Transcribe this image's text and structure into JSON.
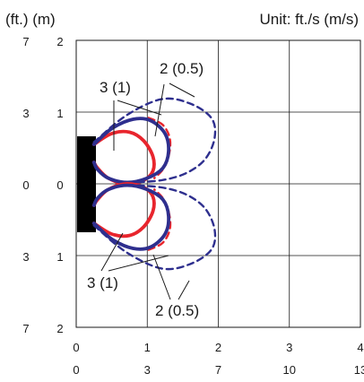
{
  "header": {
    "unit_left": "(ft.) (m)",
    "unit_right": "Unit: ft./s (m/s)"
  },
  "chart_data": {
    "type": "line",
    "title": "",
    "xlabel": "",
    "ylabel": "",
    "xlim": [
      0,
      4
    ],
    "ylim": [
      -2,
      2
    ],
    "grid": true,
    "x_ticks_m": [
      "0",
      "1",
      "2",
      "3",
      "4"
    ],
    "x_ticks_ft": [
      "0",
      "3",
      "7",
      "10",
      "13"
    ],
    "y_ticks_m": [
      "2",
      "1",
      "0",
      "1",
      "2"
    ],
    "y_ticks_ft": [
      "7",
      "3",
      "0",
      "3",
      "7"
    ],
    "colors": {
      "red": "#e8252d",
      "blue": "#2e2f8e",
      "unit_block": "#000000"
    },
    "annotations": [
      {
        "label": "2 (0.5)",
        "position": "upper"
      },
      {
        "label": "3 (1)",
        "position": "upper"
      },
      {
        "label": "3 (1)",
        "position": "lower"
      },
      {
        "label": "2 (0.5)",
        "position": "lower"
      }
    ],
    "series": [
      {
        "color": "red",
        "style": "solid",
        "velocity": "3 (1)",
        "points": [
          [
            0.25,
            0.55
          ],
          [
            0.5,
            0.7
          ],
          [
            0.75,
            0.72
          ],
          [
            0.95,
            0.6
          ],
          [
            1.08,
            0.38
          ],
          [
            1.08,
            0.18
          ],
          [
            0.95,
            0.05
          ],
          [
            0.7,
            0.0
          ],
          [
            0.45,
            0.08
          ],
          [
            0.3,
            0.22
          ],
          [
            0.25,
            0.3
          ]
        ]
      },
      {
        "color": "red",
        "style": "dashed",
        "velocity": "3 (1)",
        "points": [
          [
            1.02,
            0.92
          ],
          [
            1.22,
            0.82
          ],
          [
            1.32,
            0.62
          ],
          [
            1.3,
            0.38
          ],
          [
            1.22,
            0.2
          ],
          [
            1.1,
            0.08
          ]
        ]
      },
      {
        "color": "blue",
        "style": "solid",
        "velocity": "2 (0.5)",
        "points": [
          [
            0.25,
            0.55
          ],
          [
            0.5,
            0.77
          ],
          [
            0.8,
            0.9
          ],
          [
            1.05,
            0.88
          ],
          [
            1.25,
            0.7
          ],
          [
            1.3,
            0.45
          ],
          [
            1.22,
            0.22
          ],
          [
            1.0,
            0.08
          ],
          [
            0.72,
            0.02
          ],
          [
            0.45,
            0.08
          ],
          [
            0.3,
            0.2
          ],
          [
            0.25,
            0.3
          ]
        ]
      },
      {
        "color": "blue",
        "style": "dashed",
        "velocity": "2 (0.5)",
        "points": [
          [
            0.25,
            0.58
          ],
          [
            0.7,
            0.95
          ],
          [
            1.2,
            1.18
          ],
          [
            1.6,
            1.12
          ],
          [
            1.9,
            0.92
          ],
          [
            1.95,
            0.65
          ],
          [
            1.82,
            0.35
          ],
          [
            1.55,
            0.15
          ],
          [
            1.2,
            0.05
          ],
          [
            0.8,
            0.02
          ]
        ]
      },
      {
        "color": "red",
        "style": "solid",
        "velocity": "3 (1)",
        "points": [
          [
            0.25,
            -0.55
          ],
          [
            0.5,
            -0.7
          ],
          [
            0.75,
            -0.72
          ],
          [
            0.95,
            -0.6
          ],
          [
            1.08,
            -0.38
          ],
          [
            1.08,
            -0.18
          ],
          [
            0.95,
            -0.05
          ],
          [
            0.7,
            0.0
          ],
          [
            0.45,
            -0.08
          ],
          [
            0.3,
            -0.22
          ],
          [
            0.25,
            -0.3
          ]
        ]
      },
      {
        "color": "red",
        "style": "dashed",
        "velocity": "3 (1)",
        "points": [
          [
            1.02,
            -0.92
          ],
          [
            1.22,
            -0.82
          ],
          [
            1.32,
            -0.62
          ],
          [
            1.3,
            -0.38
          ],
          [
            1.22,
            -0.2
          ],
          [
            1.1,
            -0.08
          ]
        ]
      },
      {
        "color": "blue",
        "style": "solid",
        "velocity": "2 (0.5)",
        "points": [
          [
            0.25,
            -0.55
          ],
          [
            0.5,
            -0.77
          ],
          [
            0.8,
            -0.9
          ],
          [
            1.05,
            -0.88
          ],
          [
            1.25,
            -0.7
          ],
          [
            1.3,
            -0.45
          ],
          [
            1.22,
            -0.22
          ],
          [
            1.0,
            -0.08
          ],
          [
            0.72,
            -0.02
          ],
          [
            0.45,
            -0.08
          ],
          [
            0.3,
            -0.2
          ],
          [
            0.25,
            -0.3
          ]
        ]
      },
      {
        "color": "blue",
        "style": "dashed",
        "velocity": "2 (0.5)",
        "points": [
          [
            0.25,
            -0.58
          ],
          [
            0.7,
            -0.95
          ],
          [
            1.2,
            -1.18
          ],
          [
            1.6,
            -1.12
          ],
          [
            1.9,
            -0.92
          ],
          [
            1.95,
            -0.65
          ],
          [
            1.82,
            -0.35
          ],
          [
            1.55,
            -0.15
          ],
          [
            1.2,
            -0.05
          ],
          [
            0.8,
            -0.02
          ]
        ]
      }
    ]
  }
}
